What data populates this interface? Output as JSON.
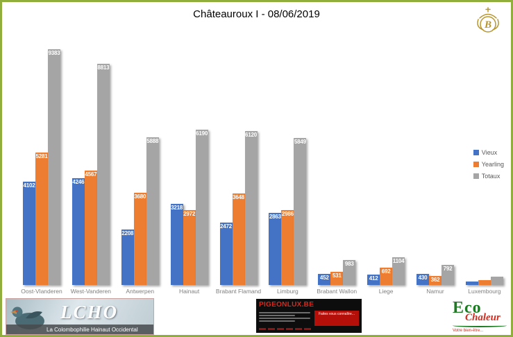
{
  "header": {
    "title": "Châteauroux I - 08/06/2019",
    "logo_letter": "B"
  },
  "chart_data": {
    "type": "bar",
    "categories": [
      "Oost-Vlanderen",
      "West-Vanderen",
      "Antwerpen",
      "Hainaut",
      "Brabant Flamand",
      "Limburg",
      "Brabant Wallon",
      "Liege",
      "Namur",
      "Luxembourg"
    ],
    "series": [
      {
        "name": "Vieux",
        "color": "#4472C4",
        "values": [
          4102,
          4246,
          2208,
          3218,
          2472,
          2863,
          452,
          412,
          430,
          150
        ]
      },
      {
        "name": "Yearling",
        "color": "#ED7D31",
        "values": [
          5281,
          4567,
          3680,
          2972,
          3648,
          2986,
          531,
          692,
          362,
          190
        ]
      },
      {
        "name": "Totaux",
        "color": "#A5A5A5",
        "values": [
          9383,
          8813,
          5888,
          6190,
          6120,
          5849,
          983,
          1104,
          792,
          340
        ]
      }
    ],
    "title": "Châteauroux I - 08/06/2019",
    "xlabel": "",
    "ylabel": "",
    "ylim": [
      0,
      9383
    ],
    "grid": false,
    "legend_position": "right",
    "data_labels": true
  },
  "footer": {
    "lcho": {
      "title": "LCHO",
      "subtitle": "La Colombophilie Hainaut Occidental"
    },
    "pigeonlux": {
      "title": "PIGEONLUX.BE",
      "cta": "Faites vous connaître..."
    },
    "eco": {
      "word1": "Eco",
      "word2": "Chaleur",
      "tagline": "Votre bien-être..."
    }
  }
}
